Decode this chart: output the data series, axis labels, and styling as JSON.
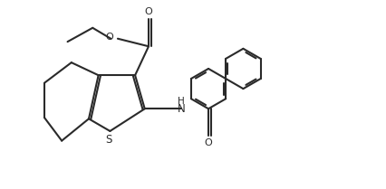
{
  "line_color": "#2a2a2a",
  "line_width": 1.5,
  "figsize": [
    4.26,
    2.09
  ],
  "dpi": 100,
  "xlim": [
    0,
    10
  ],
  "ylim": [
    0,
    4.9
  ]
}
